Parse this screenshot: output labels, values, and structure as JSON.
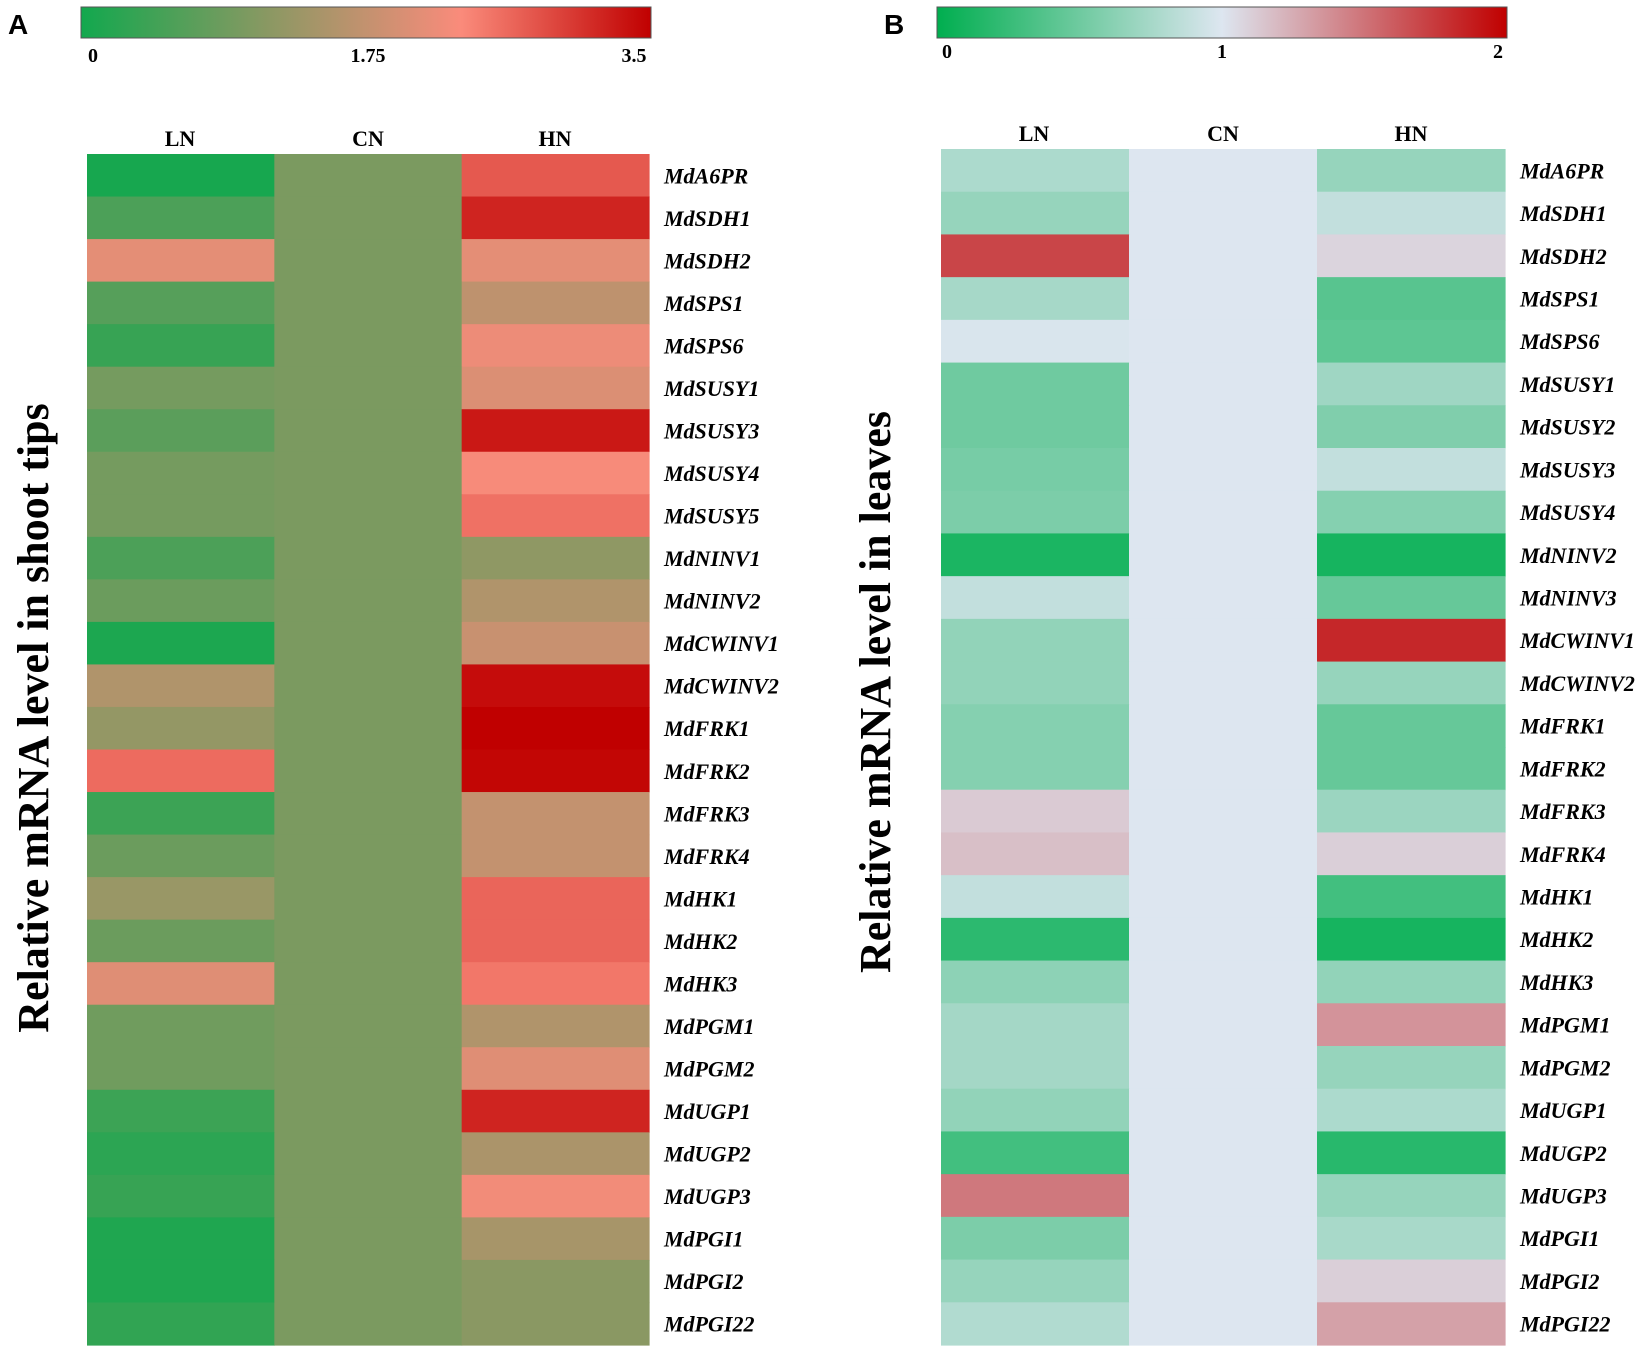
{
  "chart_data": [
    {
      "type": "heatmap",
      "panel_label": "A",
      "ylabel": "Relative mRNA level in shoot tips",
      "columns": [
        "LN",
        "CN",
        "HN"
      ],
      "scale": {
        "min": 0,
        "max": 3.5,
        "ticks": [
          "0",
          "1.75",
          "3.5"
        ],
        "tick_values": [
          0,
          1.75,
          3.5
        ],
        "colors": [
          "#12a84e",
          "#8c9863",
          "#fa8b7b",
          "#c00000"
        ]
      },
      "rows": [
        {
          "gene": "MdA6PR",
          "values": [
            0.05,
            1.0,
            2.75
          ]
        },
        {
          "gene": "MdSDH1",
          "values": [
            0.55,
            1.0,
            3.2
          ]
        },
        {
          "gene": "MdSDH2",
          "values": [
            2.1,
            1.0,
            2.1
          ]
        },
        {
          "gene": "MdSPS1",
          "values": [
            0.65,
            1.0,
            1.7
          ]
        },
        {
          "gene": "MdSPS6",
          "values": [
            0.35,
            1.0,
            2.2
          ]
        },
        {
          "gene": "MdSUSY1",
          "values": [
            0.95,
            1.0,
            2.0
          ]
        },
        {
          "gene": "MdSUSY3",
          "values": [
            0.7,
            1.0,
            3.3
          ]
        },
        {
          "gene": "MdSUSY4",
          "values": [
            0.95,
            1.0,
            2.3
          ]
        },
        {
          "gene": "MdSUSY5",
          "values": [
            0.95,
            1.0,
            2.55
          ]
        },
        {
          "gene": "MdNINV1",
          "values": [
            0.55,
            1.0,
            1.2
          ]
        },
        {
          "gene": "MdNINV2",
          "values": [
            0.85,
            1.0,
            1.55
          ]
        },
        {
          "gene": "MdCWINV1",
          "values": [
            0.1,
            1.0,
            1.8
          ]
        },
        {
          "gene": "MdCWINV2",
          "values": [
            1.55,
            1.0,
            3.4
          ]
        },
        {
          "gene": "MdFRK1",
          "values": [
            1.25,
            1.0,
            3.5
          ]
        },
        {
          "gene": "MdFRK2",
          "values": [
            2.6,
            1.0,
            3.45
          ]
        },
        {
          "gene": "MdFRK3",
          "values": [
            0.4,
            1.0,
            1.75
          ]
        },
        {
          "gene": "MdFRK4",
          "values": [
            0.85,
            1.0,
            1.75
          ]
        },
        {
          "gene": "MdHK1",
          "values": [
            1.3,
            1.0,
            2.65
          ]
        },
        {
          "gene": "MdHK2",
          "values": [
            0.85,
            1.0,
            2.65
          ]
        },
        {
          "gene": "MdHK3",
          "values": [
            2.05,
            1.0,
            2.5
          ]
        },
        {
          "gene": "MdPGM1",
          "values": [
            0.9,
            1.0,
            1.55
          ]
        },
        {
          "gene": "MdPGM2",
          "values": [
            0.9,
            1.0,
            2.05
          ]
        },
        {
          "gene": "MdUGP1",
          "values": [
            0.4,
            1.0,
            3.2
          ]
        },
        {
          "gene": "MdUGP2",
          "values": [
            0.25,
            1.0,
            1.5
          ]
        },
        {
          "gene": "MdUGP3",
          "values": [
            0.35,
            1.0,
            2.25
          ]
        },
        {
          "gene": "MdPGI1",
          "values": [
            0.12,
            1.0,
            1.45
          ]
        },
        {
          "gene": "MdPGI2",
          "values": [
            0.12,
            1.0,
            1.15
          ]
        },
        {
          "gene": "MdPGI22",
          "values": [
            0.3,
            1.0,
            1.15
          ]
        }
      ]
    },
    {
      "type": "heatmap",
      "panel_label": "B",
      "ylabel": "Relative mRNA level in leaves",
      "columns": [
        "LN",
        "CN",
        "HN"
      ],
      "scale": {
        "min": 0,
        "max": 2,
        "ticks": [
          "0",
          "1",
          "2"
        ],
        "tick_values": [
          0,
          1,
          2
        ],
        "colors": [
          "#00ae4f",
          "#dde6f0",
          "#c00000"
        ]
      },
      "rows": [
        {
          "gene": "MdA6PR",
          "values": [
            0.78,
            1.0,
            0.68
          ]
        },
        {
          "gene": "MdSDH1",
          "values": [
            0.68,
            1.0,
            0.88
          ]
        },
        {
          "gene": "MdSDH2",
          "values": [
            1.7,
            1.0,
            1.08
          ]
        },
        {
          "gene": "MdSPS1",
          "values": [
            0.75,
            1.0,
            0.4
          ]
        },
        {
          "gene": "MdSPS6",
          "values": [
            0.98,
            1.0,
            0.42
          ]
        },
        {
          "gene": "MdSUSY1",
          "values": [
            0.5,
            1.0,
            0.72
          ]
        },
        {
          "gene": "MdSUSY2",
          "values": [
            0.5,
            1.0,
            0.58
          ]
        },
        {
          "gene": "MdSUSY3",
          "values": [
            0.54,
            1.0,
            0.88
          ]
        },
        {
          "gene": "MdSUSY4",
          "values": [
            0.56,
            1.0,
            0.6
          ]
        },
        {
          "gene": "MdNINV2",
          "values": [
            0.12,
            1.0,
            0.1
          ]
        },
        {
          "gene": "MdNINV3",
          "values": [
            0.88,
            1.0,
            0.46
          ]
        },
        {
          "gene": "MdCWINV1",
          "values": [
            0.66,
            1.0,
            1.83
          ]
        },
        {
          "gene": "MdCWINV2",
          "values": [
            0.66,
            1.0,
            0.68
          ]
        },
        {
          "gene": "MdFRK1",
          "values": [
            0.6,
            1.0,
            0.46
          ]
        },
        {
          "gene": "MdFRK2",
          "values": [
            0.6,
            1.0,
            0.46
          ]
        },
        {
          "gene": "MdFRK3",
          "values": [
            1.12,
            1.0,
            0.7
          ]
        },
        {
          "gene": "MdFRK4",
          "values": [
            1.17,
            1.0,
            1.1
          ]
        },
        {
          "gene": "MdHK1",
          "values": [
            0.88,
            1.0,
            0.3
          ]
        },
        {
          "gene": "MdHK2",
          "values": [
            0.2,
            1.0,
            0.1
          ]
        },
        {
          "gene": "MdHK3",
          "values": [
            0.64,
            1.0,
            0.66
          ]
        },
        {
          "gene": "MdPGM1",
          "values": [
            0.74,
            1.0,
            1.36
          ]
        },
        {
          "gene": "MdPGM2",
          "values": [
            0.74,
            1.0,
            0.68
          ]
        },
        {
          "gene": "MdUGP1",
          "values": [
            0.66,
            1.0,
            0.78
          ]
        },
        {
          "gene": "MdUGP2",
          "values": [
            0.3,
            1.0,
            0.18
          ]
        },
        {
          "gene": "MdUGP3",
          "values": [
            1.48,
            1.0,
            0.68
          ]
        },
        {
          "gene": "MdPGI1",
          "values": [
            0.56,
            1.0,
            0.76
          ]
        },
        {
          "gene": "MdPGI2",
          "values": [
            0.68,
            1.0,
            1.1
          ]
        },
        {
          "gene": "MdPGI22",
          "values": [
            0.8,
            1.0,
            1.3
          ]
        }
      ]
    }
  ]
}
